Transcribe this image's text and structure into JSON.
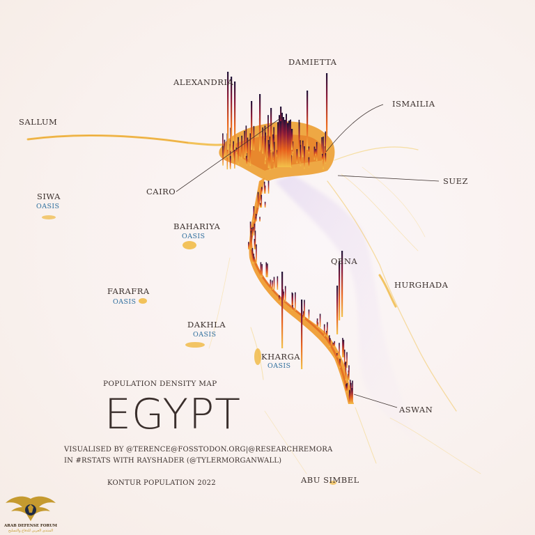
{
  "labels": {
    "damietta": "DAMIETTA",
    "alexandria": "ALEXANDRIA",
    "ismailia": "ISMAILIA",
    "sallum": "SALLUM",
    "cairo": "CAIRO",
    "suez": "SUEZ",
    "siwa": "SIWA",
    "siwa_oasis": "OASIS",
    "bahariya": "BAHARIYA",
    "bahariya_oasis": "OASIS",
    "qena": "QENA",
    "hurghada": "HURGHADA",
    "farafra": "FARAFRA",
    "farafra_oasis": "OASIS",
    "dakhla": "DAKHLA",
    "dakhla_oasis": "OASIS",
    "kharga": "KHARGA",
    "kharga_oasis": "OASIS",
    "aswan": "ASWAN",
    "abu_simbel": "ABU SIMBEL"
  },
  "title": {
    "subtitle": "POPULATION DENSITY MAP",
    "main": "EGYPT",
    "credit_line1": "VISUALISED BY @TERENCE@FOSSTODON.ORG|@RESEARCHREMORA",
    "credit_line2": "IN #RSTATS WITH RAYSHADER (@TYLERMORGANWALL)",
    "source": "KONTUR POPULATION 2022"
  },
  "watermark": {
    "line1": "ARAB DEFENSE FORUM",
    "line2": "المنتدى العربي للدفاع والتسليح"
  },
  "colors": {
    "background": "#f9f1ee",
    "low_density": "#f3c14a",
    "mid_density": "#e8631e",
    "high_density": "#8a1a3a",
    "peak_density": "#1e1338",
    "oasis_text": "#2f6f9e",
    "label_text": "#3a2f2c"
  }
}
